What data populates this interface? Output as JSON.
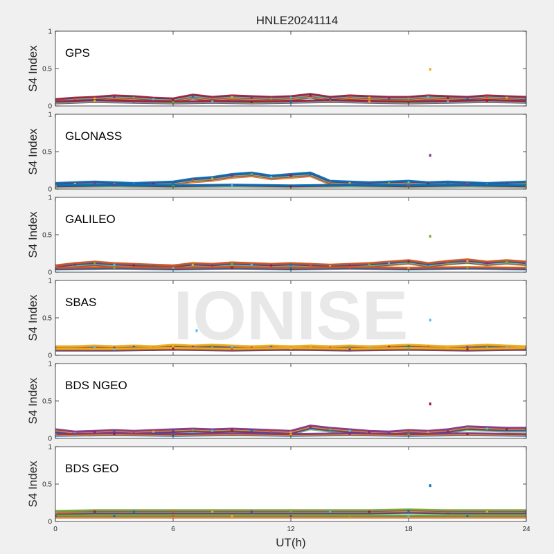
{
  "figure": {
    "title": "HNLE20241114",
    "xlabel": "UT(h)",
    "watermark": "IONISE"
  },
  "chart_data": {
    "type": "scatter",
    "title": "HNLE20241114",
    "xlabel": "UT(h)",
    "ylabel": "S4 Index",
    "xlim": [
      0,
      24
    ],
    "ylim": [
      0,
      1
    ],
    "x_ticks": [
      "0",
      "6",
      "12",
      "18",
      "24"
    ],
    "y_ticks": [
      "0",
      "0.5",
      "1"
    ],
    "grid": false,
    "colors": [
      "#0072BD",
      "#D95319",
      "#EDB120",
      "#7E2F8E",
      "#77AC30",
      "#4DBEEE",
      "#A2142F"
    ],
    "panels": [
      {
        "label": "GPS",
        "series": [
          {
            "x": [
              0,
              1,
              2,
              3,
              4,
              5,
              6,
              7,
              8,
              9,
              10,
              11,
              12,
              13,
              14,
              15,
              16,
              17,
              18,
              19,
              20,
              21,
              22,
              23,
              24
            ],
            "y": [
              0.07,
              0.09,
              0.1,
              0.12,
              0.11,
              0.09,
              0.08,
              0.13,
              0.1,
              0.12,
              0.11,
              0.1,
              0.11,
              0.14,
              0.1,
              0.12,
              0.11,
              0.1,
              0.1,
              0.12,
              0.11,
              0.1,
              0.12,
              0.11,
              0.1
            ]
          },
          {
            "x": [
              0,
              2,
              4,
              6,
              8,
              10,
              12,
              14,
              16,
              18,
              19.1,
              20,
              22,
              24
            ],
            "y": [
              0.05,
              0.07,
              0.06,
              0.05,
              0.06,
              0.05,
              0.06,
              0.07,
              0.06,
              0.05,
              0.49,
              0.06,
              0.07,
              0.06
            ]
          }
        ]
      },
      {
        "label": "GLONASS",
        "series": [
          {
            "x": [
              0,
              1,
              2,
              3,
              4,
              5,
              6,
              7,
              8,
              9,
              10,
              11,
              12,
              13,
              14,
              15,
              16,
              17,
              18,
              19,
              20,
              21,
              22,
              23,
              24
            ],
            "y": [
              0.06,
              0.07,
              0.08,
              0.07,
              0.06,
              0.07,
              0.08,
              0.12,
              0.14,
              0.18,
              0.2,
              0.16,
              0.18,
              0.2,
              0.09,
              0.08,
              0.07,
              0.08,
              0.09,
              0.07,
              0.08,
              0.07,
              0.06,
              0.07,
              0.08
            ]
          },
          {
            "x": [
              0,
              3,
              6,
              9,
              12,
              15,
              18,
              19.1,
              21,
              24
            ],
            "y": [
              0.04,
              0.05,
              0.04,
              0.05,
              0.04,
              0.05,
              0.04,
              0.45,
              0.05,
              0.04
            ]
          }
        ]
      },
      {
        "label": "GALILEO",
        "series": [
          {
            "x": [
              0,
              1,
              2,
              3,
              4,
              5,
              6,
              7,
              8,
              9,
              10,
              11,
              12,
              13,
              14,
              15,
              16,
              17,
              18,
              19,
              20,
              21,
              22,
              23,
              24
            ],
            "y": [
              0.07,
              0.1,
              0.12,
              0.1,
              0.09,
              0.08,
              0.07,
              0.1,
              0.09,
              0.11,
              0.1,
              0.09,
              0.1,
              0.09,
              0.08,
              0.09,
              0.1,
              0.12,
              0.14,
              0.1,
              0.13,
              0.15,
              0.12,
              0.14,
              0.12
            ]
          },
          {
            "x": [
              0,
              3,
              6,
              9,
              12,
              15,
              18,
              19.1,
              21,
              24
            ],
            "y": [
              0.05,
              0.06,
              0.05,
              0.06,
              0.05,
              0.06,
              0.05,
              0.48,
              0.06,
              0.05
            ]
          }
        ]
      },
      {
        "label": "SBAS",
        "series": [
          {
            "x": [
              0,
              1,
              2,
              3,
              4,
              5,
              6,
              7,
              8,
              9,
              10,
              11,
              12,
              13,
              14,
              15,
              16,
              17,
              18,
              19,
              20,
              21,
              22,
              23,
              24
            ],
            "y": [
              0.1,
              0.1,
              0.11,
              0.1,
              0.11,
              0.1,
              0.12,
              0.11,
              0.12,
              0.11,
              0.1,
              0.11,
              0.1,
              0.11,
              0.1,
              0.11,
              0.1,
              0.11,
              0.12,
              0.11,
              0.1,
              0.11,
              0.12,
              0.11,
              0.1
            ]
          },
          {
            "x": [
              0,
              3,
              6,
              7.2,
              9,
              12,
              15,
              18,
              19.1,
              21,
              24
            ],
            "y": [
              0.08,
              0.08,
              0.09,
              0.33,
              0.08,
              0.09,
              0.08,
              0.09,
              0.47,
              0.08,
              0.09
            ]
          }
        ]
      },
      {
        "label": "BDS NGEO",
        "series": [
          {
            "x": [
              0,
              1,
              2,
              3,
              4,
              5,
              6,
              7,
              8,
              9,
              10,
              11,
              12,
              13,
              14,
              15,
              16,
              17,
              18,
              19,
              20,
              21,
              22,
              23,
              24
            ],
            "y": [
              0.1,
              0.07,
              0.08,
              0.09,
              0.08,
              0.09,
              0.1,
              0.11,
              0.1,
              0.11,
              0.1,
              0.09,
              0.08,
              0.15,
              0.12,
              0.1,
              0.08,
              0.07,
              0.09,
              0.08,
              0.1,
              0.14,
              0.13,
              0.12,
              0.12
            ]
          },
          {
            "x": [
              0,
              3,
              6,
              9,
              12,
              15,
              18,
              19.1,
              21,
              24
            ],
            "y": [
              0.05,
              0.06,
              0.05,
              0.06,
              0.05,
              0.06,
              0.05,
              0.46,
              0.06,
              0.05
            ]
          }
        ]
      },
      {
        "label": "BDS GEO",
        "series": [
          {
            "x": [
              0,
              2,
              4,
              6,
              8,
              10,
              12,
              14,
              16,
              18,
              20,
              22,
              24
            ],
            "y": [
              0.12,
              0.13,
              0.13,
              0.13,
              0.13,
              0.13,
              0.13,
              0.13,
              0.13,
              0.14,
              0.13,
              0.13,
              0.13
            ]
          },
          {
            "x": [
              0,
              3,
              6,
              9,
              12,
              15,
              18,
              19.1,
              21,
              24
            ],
            "y": [
              0.07,
              0.07,
              0.07,
              0.07,
              0.07,
              0.07,
              0.07,
              0.48,
              0.07,
              0.07
            ]
          }
        ]
      }
    ]
  }
}
